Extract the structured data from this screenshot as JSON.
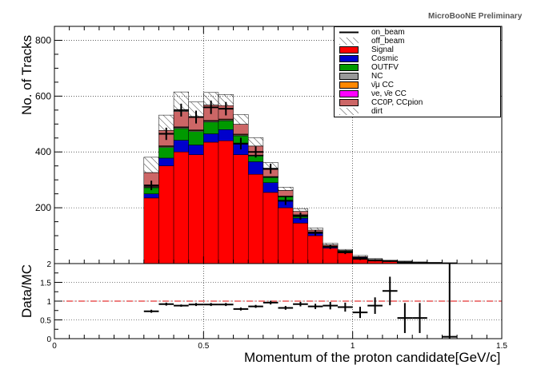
{
  "badge": "MicroBooNE Preliminary",
  "chart_data": [
    {
      "type": "bar",
      "stacked": true,
      "ylabel": "No. of Tracks",
      "xlim": [
        0,
        1.5
      ],
      "ylim": [
        0,
        850
      ],
      "yticks": [
        200,
        400,
        600,
        800
      ],
      "grid": true,
      "legend_position": "top-right",
      "bin_edges": [
        0.3,
        0.35,
        0.4,
        0.45,
        0.5,
        0.55,
        0.6,
        0.65,
        0.7,
        0.75,
        0.8,
        0.85,
        0.9,
        0.95,
        1.0,
        1.05,
        1.1,
        1.15,
        1.2,
        1.25,
        1.3,
        1.35
      ],
      "series": [
        {
          "name": "Signal",
          "color": "#ff0000",
          "values": [
            235,
            350,
            400,
            390,
            435,
            440,
            390,
            320,
            255,
            200,
            145,
            100,
            55,
            40,
            20,
            12,
            8,
            5,
            3,
            2,
            1
          ]
        },
        {
          "name": "Cosmic",
          "color": "#0000cc",
          "values": [
            15,
            28,
            42,
            35,
            30,
            40,
            38,
            45,
            35,
            25,
            18,
            8,
            5,
            3,
            2,
            1,
            1,
            1,
            0,
            0,
            0
          ]
        },
        {
          "name": "OUTFV",
          "color": "#009900",
          "values": [
            22,
            38,
            42,
            48,
            42,
            32,
            30,
            20,
            18,
            14,
            10,
            5,
            3,
            2,
            1,
            1,
            0,
            0,
            0,
            0,
            0
          ]
        },
        {
          "name": "NC",
          "color": "#999999",
          "values": [
            2,
            3,
            3,
            3,
            3,
            3,
            3,
            2,
            2,
            1,
            1,
            1,
            0,
            0,
            0,
            0,
            0,
            0,
            0,
            0,
            0
          ]
        },
        {
          "name": "ν̄μ CC",
          "color": "#ff8800",
          "values": [
            1,
            2,
            2,
            2,
            2,
            2,
            2,
            1,
            1,
            1,
            1,
            0,
            0,
            0,
            0,
            0,
            0,
            0,
            0,
            0,
            0
          ]
        },
        {
          "name": "νe, ν̄e CC",
          "color": "#ff00ff",
          "values": [
            1,
            1,
            1,
            1,
            1,
            1,
            1,
            1,
            1,
            1,
            0,
            0,
            0,
            0,
            0,
            0,
            0,
            0,
            0,
            0,
            0
          ]
        },
        {
          "name": "CC0P, CCpion",
          "color": "#cc6666",
          "values": [
            50,
            55,
            55,
            45,
            55,
            48,
            35,
            32,
            25,
            20,
            12,
            6,
            4,
            2,
            2,
            1,
            1,
            1,
            1,
            1,
            0
          ]
        }
      ],
      "hatched": [
        {
          "name": "off_beam",
          "values": [
            55,
            55,
            70,
            55,
            45,
            40,
            35,
            30,
            25,
            12,
            10,
            8,
            6,
            4,
            4,
            3,
            2,
            2,
            2,
            1,
            1
          ]
        },
        {
          "name": "dirt",
          "values": [
            0,
            0,
            0,
            0,
            0,
            0,
            0,
            0,
            0,
            0,
            0,
            0,
            0,
            0,
            0,
            0,
            0,
            0,
            0,
            0,
            0
          ]
        }
      ],
      "points": {
        "name": "on_beam",
        "x": [
          0.325,
          0.375,
          0.425,
          0.475,
          0.525,
          0.575,
          0.625,
          0.675,
          0.725,
          0.775,
          0.825,
          0.875,
          0.925,
          0.975,
          1.025,
          1.075,
          1.125,
          1.175,
          1.225,
          1.275,
          1.325
        ],
        "y": [
          280,
          465,
          550,
          525,
          560,
          555,
          430,
          400,
          340,
          225,
          170,
          110,
          60,
          40,
          17,
          11,
          9,
          3,
          2,
          2,
          1
        ],
        "err": [
          17,
          22,
          23,
          23,
          24,
          24,
          21,
          20,
          18,
          15,
          13,
          10,
          8,
          6,
          4,
          3,
          3,
          2,
          1,
          1,
          1
        ]
      }
    },
    {
      "type": "scatter",
      "ylabel": "Data/MC",
      "xlabel": "Momentum of the proton candidate[GeV/c]",
      "xlim": [
        0,
        1.5
      ],
      "ylim": [
        0,
        2
      ],
      "xticks": [
        0,
        0.5,
        1,
        1.5
      ],
      "yticks": [
        0,
        0.5,
        1,
        1.5,
        2
      ],
      "grid": true,
      "reference_line": 1,
      "x": [
        0.325,
        0.375,
        0.425,
        0.475,
        0.525,
        0.575,
        0.625,
        0.675,
        0.725,
        0.775,
        0.825,
        0.875,
        0.925,
        0.975,
        1.025,
        1.075,
        1.125,
        1.175,
        1.225,
        1.275,
        1.325
      ],
      "y": [
        0.73,
        0.92,
        0.88,
        0.91,
        0.91,
        0.91,
        0.79,
        0.86,
        0.96,
        0.82,
        0.92,
        0.86,
        0.88,
        0.84,
        0.7,
        0.88,
        1.27,
        0.55,
        0.55,
        null,
        0.05
      ],
      "err": [
        0.04,
        0.04,
        0.03,
        0.04,
        0.04,
        0.04,
        0.04,
        0.04,
        0.05,
        0.05,
        0.06,
        0.07,
        0.1,
        0.12,
        0.15,
        0.22,
        0.38,
        0.4,
        0.4,
        null,
        2.5
      ]
    }
  ]
}
